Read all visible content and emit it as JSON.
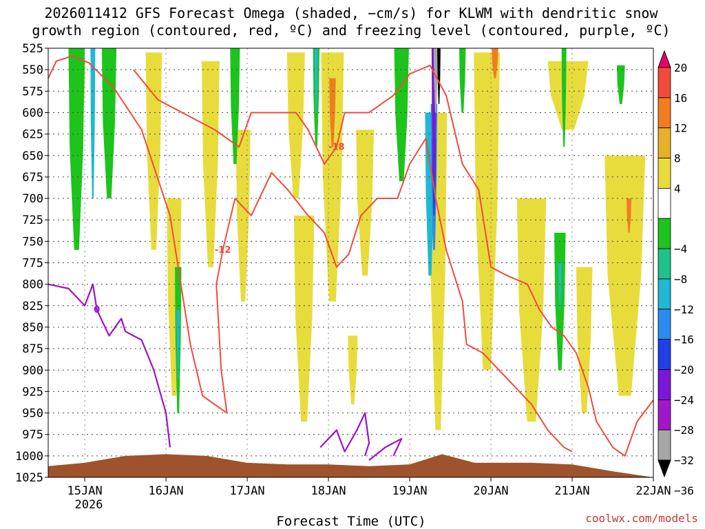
{
  "chart_data": {
    "type": "heatmap",
    "title": "2026011412 GFS Forecast Omega (shaded, −cm/s) for KLWM with dendritic snow",
    "subtitle": "growth region (contoured, red, ºC) and freezing level (contoured, purple, ºC)",
    "xlabel": "Forecast Time (UTC)",
    "credit": "coolwx.com/models",
    "x_ticks": [
      "15JAN",
      "16JAN",
      "17JAN",
      "18JAN",
      "19JAN",
      "20JAN",
      "21JAN",
      "22JAN"
    ],
    "x_year": "2026",
    "x_range_days": [
      14.55,
      22.0
    ],
    "y_ticks": [
      525,
      550,
      575,
      600,
      625,
      650,
      675,
      700,
      725,
      750,
      775,
      800,
      825,
      850,
      875,
      900,
      925,
      950,
      975,
      1000,
      1025
    ],
    "y_range_hpa": [
      525,
      1025
    ],
    "colorbar": {
      "tick_labels": [
        "20",
        "16",
        "12",
        "8",
        "4",
        "−4",
        "−8",
        "−12",
        "−16",
        "−20",
        "−24",
        "−28",
        "−32",
        "−36"
      ],
      "bins": [
        {
          "range": "> 20",
          "color": "#e8006e"
        },
        {
          "range": "16 to 20",
          "color": "#f24a3a"
        },
        {
          "range": "12 to 16",
          "color": "#f07d20"
        },
        {
          "range": "8 to 12",
          "color": "#e8b02a"
        },
        {
          "range": "4 to 8",
          "color": "#e8dc3c"
        },
        {
          "range": "-4 to 4",
          "color": "#ffffff"
        },
        {
          "range": "-8 to -4",
          "color": "#1cc41c"
        },
        {
          "range": "-12 to -8",
          "color": "#1ec28a"
        },
        {
          "range": "-16 to -12",
          "color": "#20b8d2"
        },
        {
          "range": "-20 to -16",
          "color": "#2a8cf0"
        },
        {
          "range": "-24 to -20",
          "color": "#2040e6"
        },
        {
          "range": "-28 to -24",
          "color": "#7a18d8"
        },
        {
          "range": "-32 to -28",
          "color": "#a218c8"
        },
        {
          "range": "-36 to -32",
          "color": "#a6a6a6"
        },
        {
          "range": "< -36",
          "color": "#000000"
        }
      ]
    },
    "fields": [
      {
        "kind": "yellow",
        "day": 14.95,
        "p1": 540,
        "p2": 620,
        "w": 0.12
      },
      {
        "kind": "yellow",
        "day": 15.85,
        "p1": 530,
        "p2": 760,
        "w": 0.2
      },
      {
        "kind": "yellow",
        "day": 16.1,
        "p1": 700,
        "p2": 930,
        "w": 0.18
      },
      {
        "kind": "yellow",
        "day": 16.55,
        "p1": 540,
        "p2": 780,
        "w": 0.22
      },
      {
        "kind": "yellow",
        "day": 16.95,
        "p1": 620,
        "p2": 820,
        "w": 0.18
      },
      {
        "kind": "yellow",
        "day": 17.6,
        "p1": 530,
        "p2": 700,
        "w": 0.22
      },
      {
        "kind": "yellow",
        "day": 17.7,
        "p1": 720,
        "p2": 960,
        "w": 0.25
      },
      {
        "kind": "yellow",
        "day": 18.05,
        "p1": 530,
        "p2": 820,
        "w": 0.28
      },
      {
        "kind": "yellow",
        "day": 18.45,
        "p1": 620,
        "p2": 790,
        "w": 0.22
      },
      {
        "kind": "yellow",
        "day": 18.3,
        "p1": 860,
        "p2": 940,
        "w": 0.12
      },
      {
        "kind": "yellow",
        "day": 19.35,
        "p1": 600,
        "p2": 970,
        "w": 0.22
      },
      {
        "kind": "yellow",
        "day": 19.95,
        "p1": 530,
        "p2": 900,
        "w": 0.32
      },
      {
        "kind": "yellow",
        "day": 20.5,
        "p1": 700,
        "p2": 960,
        "w": 0.36
      },
      {
        "kind": "yellow",
        "day": 20.95,
        "p1": 540,
        "p2": 620,
        "w": 0.5
      },
      {
        "kind": "yellow",
        "day": 21.15,
        "p1": 780,
        "p2": 950,
        "w": 0.2
      },
      {
        "kind": "yellow",
        "day": 21.65,
        "p1": 650,
        "p2": 930,
        "w": 0.5
      },
      {
        "kind": "orange",
        "day": 18.05,
        "p1": 560,
        "p2": 640,
        "w": 0.08
      },
      {
        "kind": "orange",
        "day": 20.05,
        "p1": 525,
        "p2": 560,
        "w": 0.08
      },
      {
        "kind": "orange",
        "day": 21.7,
        "p1": 700,
        "p2": 740,
        "w": 0.06
      },
      {
        "kind": "green",
        "day": 14.9,
        "p1": 525,
        "p2": 760,
        "w": 0.2
      },
      {
        "kind": "green",
        "day": 15.3,
        "p1": 525,
        "p2": 700,
        "w": 0.18
      },
      {
        "kind": "green",
        "day": 16.15,
        "p1": 780,
        "p2": 950,
        "w": 0.08
      },
      {
        "kind": "green",
        "day": 16.85,
        "p1": 525,
        "p2": 660,
        "w": 0.12
      },
      {
        "kind": "green",
        "day": 17.85,
        "p1": 525,
        "p2": 640,
        "w": 0.08
      },
      {
        "kind": "green",
        "day": 18.9,
        "p1": 525,
        "p2": 680,
        "w": 0.18
      },
      {
        "kind": "green",
        "day": 19.65,
        "p1": 525,
        "p2": 600,
        "w": 0.08
      },
      {
        "kind": "green",
        "day": 20.9,
        "p1": 525,
        "p2": 640,
        "w": 0.06
      },
      {
        "kind": "green",
        "day": 20.85,
        "p1": 740,
        "p2": 900,
        "w": 0.14
      },
      {
        "kind": "green",
        "day": 21.6,
        "p1": 545,
        "p2": 590,
        "w": 0.1
      },
      {
        "kind": "cyan",
        "day": 15.1,
        "p1": 525,
        "p2": 700,
        "w": 0.06
      },
      {
        "kind": "cyan",
        "day": 16.15,
        "p1": 830,
        "p2": 910,
        "w": 0.04
      },
      {
        "kind": "cyan",
        "day": 17.85,
        "p1": 525,
        "p2": 600,
        "w": 0.04
      },
      {
        "kind": "cyan",
        "day": 20.85,
        "p1": 775,
        "p2": 830,
        "w": 0.04
      },
      {
        "kind": "cyan",
        "day": 19.25,
        "p1": 600,
        "p2": 790,
        "w": 0.12
      },
      {
        "kind": "blue",
        "day": 19.3,
        "p1": 590,
        "p2": 760,
        "w": 0.08
      },
      {
        "kind": "darkblue",
        "day": 19.3,
        "p1": 630,
        "p2": 720,
        "w": 0.05
      },
      {
        "kind": "purple",
        "day": 19.3,
        "p1": 525,
        "p2": 690,
        "w": 0.06
      },
      {
        "kind": "gray",
        "day": 19.32,
        "p1": 525,
        "p2": 600,
        "w": 0.05
      },
      {
        "kind": "black",
        "day": 19.36,
        "p1": 525,
        "p2": 590,
        "w": 0.04
      }
    ],
    "dgz_contours": [
      {
        "label": "-12",
        "points": [
          [
            14.55,
            560
          ],
          [
            14.65,
            540
          ],
          [
            14.85,
            534
          ],
          [
            15.05,
            542
          ],
          [
            15.35,
            570
          ],
          [
            15.7,
            620
          ],
          [
            16.05,
            720
          ],
          [
            16.3,
            870
          ],
          [
            16.45,
            930
          ],
          [
            16.75,
            950
          ],
          [
            16.68,
            900
          ],
          [
            16.62,
            800
          ],
          [
            16.7,
            760
          ],
          [
            16.85,
            700
          ],
          [
            17.05,
            720
          ],
          [
            17.3,
            670
          ],
          [
            17.5,
            690
          ],
          [
            17.75,
            720
          ],
          [
            17.95,
            740
          ],
          [
            18.1,
            780
          ],
          [
            18.25,
            765
          ],
          [
            18.4,
            720
          ],
          [
            18.6,
            700
          ],
          [
            18.85,
            700
          ],
          [
            19.0,
            660
          ],
          [
            19.2,
            630
          ],
          [
            19.32,
            700
          ],
          [
            19.45,
            760
          ],
          [
            19.55,
            790
          ],
          [
            19.65,
            820
          ],
          [
            19.7,
            870
          ],
          [
            19.9,
            880
          ],
          [
            20.1,
            900
          ],
          [
            20.3,
            920
          ],
          [
            20.5,
            940
          ],
          [
            20.7,
            970
          ],
          [
            20.9,
            990
          ],
          [
            21.0,
            995
          ]
        ]
      },
      {
        "label": "-18",
        "points": [
          [
            15.6,
            550
          ],
          [
            15.9,
            585
          ],
          [
            16.2,
            600
          ],
          [
            16.6,
            620
          ],
          [
            16.9,
            640
          ],
          [
            17.05,
            600
          ],
          [
            17.3,
            600
          ],
          [
            17.6,
            600
          ],
          [
            17.75,
            620
          ],
          [
            17.95,
            660
          ],
          [
            18.1,
            640
          ],
          [
            18.2,
            600
          ],
          [
            18.5,
            600
          ],
          [
            18.8,
            580
          ],
          [
            19.0,
            555
          ],
          [
            19.25,
            545
          ],
          [
            19.45,
            580
          ],
          [
            19.65,
            660
          ],
          [
            19.85,
            690
          ],
          [
            20.0,
            780
          ],
          [
            20.2,
            790
          ],
          [
            20.45,
            800
          ],
          [
            20.6,
            830
          ],
          [
            20.75,
            850
          ],
          [
            20.9,
            860
          ],
          [
            21.05,
            880
          ],
          [
            21.2,
            920
          ],
          [
            21.3,
            960
          ],
          [
            21.5,
            990
          ],
          [
            21.65,
            1000
          ],
          [
            21.8,
            960
          ],
          [
            22.0,
            935
          ]
        ]
      }
    ],
    "freezing_contours": [
      {
        "label": "0",
        "points": [
          [
            14.55,
            800
          ],
          [
            14.8,
            805
          ],
          [
            15.0,
            825
          ],
          [
            15.1,
            800
          ],
          [
            15.15,
            830
          ],
          [
            15.3,
            860
          ],
          [
            15.45,
            840
          ],
          [
            15.5,
            855
          ],
          [
            15.7,
            865
          ],
          [
            15.85,
            900
          ],
          [
            16.0,
            950
          ],
          [
            16.05,
            990
          ]
        ]
      },
      {
        "label": "",
        "points": [
          [
            17.9,
            990
          ],
          [
            18.1,
            970
          ],
          [
            18.2,
            995
          ],
          [
            18.35,
            970
          ],
          [
            18.45,
            950
          ],
          [
            18.5,
            985
          ],
          [
            18.45,
            1000
          ]
        ]
      },
      {
        "label": "",
        "points": [
          [
            18.5,
            1005
          ],
          [
            18.7,
            990
          ],
          [
            18.9,
            980
          ],
          [
            18.8,
            1000
          ]
        ]
      }
    ],
    "terrain_hpa": [
      [
        14.55,
        1012
      ],
      [
        15.0,
        1008
      ],
      [
        15.5,
        1000
      ],
      [
        16.0,
        998
      ],
      [
        16.5,
        1000
      ],
      [
        17.0,
        1008
      ],
      [
        17.5,
        1010
      ],
      [
        18.0,
        1010
      ],
      [
        18.5,
        1012
      ],
      [
        19.0,
        1010
      ],
      [
        19.4,
        998
      ],
      [
        19.8,
        1008
      ],
      [
        20.5,
        1008
      ],
      [
        21.0,
        1010
      ],
      [
        21.5,
        1018
      ],
      [
        22.0,
        1025
      ]
    ]
  }
}
